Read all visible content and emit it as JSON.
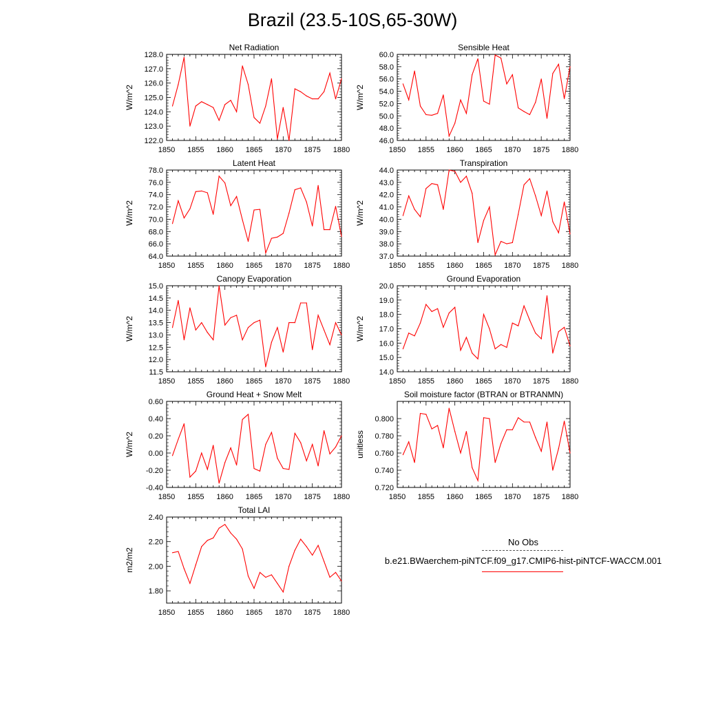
{
  "title": "Brazil (23.5-10S,65-30W)",
  "legend": {
    "obs_label": "No Obs",
    "run_label": "b.e21.BWaerchem-piNTCF.f09_g17.CMIP6-hist-piNTCF-WACCM.001",
    "obs_color": "#555555",
    "run_color": "#ff0000"
  },
  "chart_data": [
    {
      "type": "line",
      "title": "Net Radiation",
      "ylabel": "W/m^2",
      "xlim": [
        1850,
        1880
      ],
      "ylim": [
        122.0,
        128.0
      ],
      "xticks": [
        "1850",
        "1855",
        "1860",
        "1865",
        "1870",
        "1875",
        "1880"
      ],
      "yticks": [
        "122.0",
        "123.0",
        "124.0",
        "125.0",
        "126.0",
        "127.0",
        "128.0"
      ],
      "x": [
        1851,
        1852,
        1853,
        1854,
        1855,
        1856,
        1857,
        1858,
        1859,
        1860,
        1861,
        1862,
        1863,
        1864,
        1865,
        1866,
        1867,
        1868,
        1869,
        1870,
        1871,
        1872,
        1873,
        1874,
        1875,
        1876,
        1877,
        1878,
        1879,
        1880
      ],
      "values": [
        124.4,
        125.9,
        127.8,
        123.0,
        124.4,
        124.7,
        124.5,
        124.3,
        123.4,
        124.5,
        124.8,
        124.0,
        127.2,
        125.9,
        123.6,
        123.2,
        124.4,
        126.3,
        122.1,
        124.3,
        122.0,
        125.6,
        125.4,
        125.1,
        124.9,
        124.9,
        125.4,
        126.7,
        124.9,
        126.3
      ],
      "color": "#ff0000"
    },
    {
      "type": "line",
      "title": "Sensible Heat",
      "ylabel": "W/m^2",
      "xlim": [
        1850,
        1880
      ],
      "ylim": [
        46.0,
        60.0
      ],
      "xticks": [
        "1850",
        "1855",
        "1860",
        "1865",
        "1870",
        "1875",
        "1880"
      ],
      "yticks": [
        "46.0",
        "48.0",
        "50.0",
        "52.0",
        "54.0",
        "56.0",
        "58.0",
        "60.0"
      ],
      "x": [
        1851,
        1852,
        1853,
        1854,
        1855,
        1856,
        1857,
        1858,
        1859,
        1860,
        1861,
        1862,
        1863,
        1864,
        1865,
        1866,
        1867,
        1868,
        1869,
        1870,
        1871,
        1872,
        1873,
        1874,
        1875,
        1876,
        1877,
        1878,
        1879,
        1880
      ],
      "values": [
        55.2,
        52.6,
        57.3,
        51.6,
        50.2,
        50.1,
        50.4,
        53.4,
        46.7,
        48.8,
        52.6,
        50.4,
        56.7,
        59.3,
        52.4,
        51.9,
        59.9,
        59.4,
        55.2,
        56.7,
        51.3,
        50.7,
        50.2,
        52.2,
        56.0,
        49.6,
        56.9,
        58.4,
        52.8,
        58.0
      ],
      "color": "#ff0000"
    },
    {
      "type": "line",
      "title": "Latent Heat",
      "ylabel": "W/m^2",
      "xlim": [
        1850,
        1880
      ],
      "ylim": [
        64.0,
        78.0
      ],
      "xticks": [
        "1850",
        "1855",
        "1860",
        "1865",
        "1870",
        "1875",
        "1880"
      ],
      "yticks": [
        "64.0",
        "66.0",
        "68.0",
        "70.0",
        "72.0",
        "74.0",
        "76.0",
        "78.0"
      ],
      "x": [
        1851,
        1852,
        1853,
        1854,
        1855,
        1856,
        1857,
        1858,
        1859,
        1860,
        1861,
        1862,
        1863,
        1864,
        1865,
        1866,
        1867,
        1868,
        1869,
        1870,
        1871,
        1872,
        1873,
        1874,
        1875,
        1876,
        1877,
        1878,
        1879,
        1880
      ],
      "values": [
        69.3,
        73.0,
        70.2,
        71.7,
        74.5,
        74.6,
        74.3,
        70.8,
        77.0,
        75.9,
        72.2,
        73.7,
        69.9,
        66.4,
        71.5,
        71.6,
        64.5,
        66.9,
        67.1,
        67.7,
        71.0,
        74.8,
        75.1,
        72.8,
        68.9,
        75.5,
        68.3,
        68.3,
        72.1,
        67.2
      ],
      "color": "#ff0000"
    },
    {
      "type": "line",
      "title": "Transpiration",
      "ylabel": "W/m^2",
      "xlim": [
        1850,
        1880
      ],
      "ylim": [
        37.0,
        44.0
      ],
      "xticks": [
        "1850",
        "1855",
        "1860",
        "1865",
        "1870",
        "1875",
        "1880"
      ],
      "yticks": [
        "37.0",
        "38.0",
        "39.0",
        "40.0",
        "41.0",
        "42.0",
        "43.0",
        "44.0"
      ],
      "x": [
        1851,
        1852,
        1853,
        1854,
        1855,
        1856,
        1857,
        1858,
        1859,
        1860,
        1861,
        1862,
        1863,
        1864,
        1865,
        1866,
        1867,
        1868,
        1869,
        1870,
        1871,
        1872,
        1873,
        1874,
        1875,
        1876,
        1877,
        1878,
        1879,
        1880
      ],
      "values": [
        40.3,
        41.9,
        40.8,
        40.2,
        42.5,
        42.9,
        42.8,
        40.8,
        44.0,
        43.9,
        43.0,
        43.5,
        42.1,
        38.1,
        39.9,
        41.0,
        37.1,
        38.2,
        38.0,
        38.1,
        40.4,
        42.8,
        43.3,
        41.9,
        40.3,
        42.3,
        39.8,
        38.9,
        41.4,
        38.8
      ],
      "color": "#ff0000"
    },
    {
      "type": "line",
      "title": "Canopy Evaporation",
      "ylabel": "W/m^2",
      "xlim": [
        1850,
        1880
      ],
      "ylim": [
        11.5,
        15.0
      ],
      "xticks": [
        "1850",
        "1855",
        "1860",
        "1865",
        "1870",
        "1875",
        "1880"
      ],
      "yticks": [
        "11.5",
        "12.0",
        "12.5",
        "13.0",
        "13.5",
        "14.0",
        "14.5",
        "15.0"
      ],
      "x": [
        1851,
        1852,
        1853,
        1854,
        1855,
        1856,
        1857,
        1858,
        1859,
        1860,
        1861,
        1862,
        1863,
        1864,
        1865,
        1866,
        1867,
        1868,
        1869,
        1870,
        1871,
        1872,
        1873,
        1874,
        1875,
        1876,
        1877,
        1878,
        1879,
        1880
      ],
      "values": [
        13.3,
        14.4,
        12.8,
        14.1,
        13.2,
        13.5,
        13.1,
        12.8,
        15.0,
        13.4,
        13.7,
        13.8,
        12.8,
        13.3,
        13.5,
        13.6,
        11.7,
        12.7,
        13.3,
        12.3,
        13.5,
        13.5,
        14.3,
        14.3,
        12.4,
        13.8,
        13.2,
        12.6,
        13.5,
        13.0
      ],
      "color": "#ff0000"
    },
    {
      "type": "line",
      "title": "Ground Evaporation",
      "ylabel": "W/m^2",
      "xlim": [
        1850,
        1880
      ],
      "ylim": [
        14.0,
        20.0
      ],
      "xticks": [
        "1850",
        "1855",
        "1860",
        "1865",
        "1870",
        "1875",
        "1880"
      ],
      "yticks": [
        "14.0",
        "15.0",
        "16.0",
        "17.0",
        "18.0",
        "19.0",
        "20.0"
      ],
      "x": [
        1851,
        1852,
        1853,
        1854,
        1855,
        1856,
        1857,
        1858,
        1859,
        1860,
        1861,
        1862,
        1863,
        1864,
        1865,
        1866,
        1867,
        1868,
        1869,
        1870,
        1871,
        1872,
        1873,
        1874,
        1875,
        1876,
        1877,
        1878,
        1879,
        1880
      ],
      "values": [
        15.6,
        16.7,
        16.5,
        17.4,
        18.7,
        18.2,
        18.4,
        17.1,
        18.1,
        18.5,
        15.5,
        16.4,
        15.3,
        14.9,
        18.0,
        17.0,
        15.6,
        15.9,
        15.7,
        17.4,
        17.2,
        18.6,
        17.6,
        16.7,
        16.3,
        19.3,
        15.3,
        16.8,
        17.1,
        15.8
      ],
      "color": "#ff0000"
    },
    {
      "type": "line",
      "title": "Ground Heat + Snow Melt",
      "ylabel": "W/m^2",
      "xlim": [
        1850,
        1880
      ],
      "ylim": [
        -0.4,
        0.6
      ],
      "xticks": [
        "1850",
        "1855",
        "1860",
        "1865",
        "1870",
        "1875",
        "1880"
      ],
      "yticks": [
        "-0.40",
        "-0.20",
        "0.00",
        "0.20",
        "0.40",
        "0.60"
      ],
      "x": [
        1851,
        1852,
        1853,
        1854,
        1855,
        1856,
        1857,
        1858,
        1859,
        1860,
        1861,
        1862,
        1863,
        1864,
        1865,
        1866,
        1867,
        1868,
        1869,
        1870,
        1871,
        1872,
        1873,
        1874,
        1875,
        1876,
        1877,
        1878,
        1879,
        1880
      ],
      "values": [
        -0.03,
        0.16,
        0.34,
        -0.28,
        -0.21,
        0.0,
        -0.19,
        0.09,
        -0.35,
        -0.11,
        0.06,
        -0.14,
        0.39,
        0.45,
        -0.18,
        -0.21,
        0.1,
        0.24,
        -0.06,
        -0.18,
        -0.19,
        0.23,
        0.12,
        -0.09,
        0.1,
        -0.15,
        0.26,
        -0.01,
        0.07,
        0.2
      ],
      "color": "#ff0000"
    },
    {
      "type": "line",
      "title": "Soil moisture factor (BTRAN or BTRANMN)",
      "ylabel": "unitless",
      "xlim": [
        1850,
        1880
      ],
      "ylim": [
        0.72,
        0.82
      ],
      "xticks": [
        "1850",
        "1855",
        "1860",
        "1865",
        "1870",
        "1875",
        "1880"
      ],
      "yticks": [
        "0.720",
        "0.740",
        "0.760",
        "0.780",
        "0.800"
      ],
      "x": [
        1851,
        1852,
        1853,
        1854,
        1855,
        1856,
        1857,
        1858,
        1859,
        1860,
        1861,
        1862,
        1863,
        1864,
        1865,
        1866,
        1867,
        1868,
        1869,
        1870,
        1871,
        1872,
        1873,
        1874,
        1875,
        1876,
        1877,
        1878,
        1879,
        1880
      ],
      "values": [
        0.758,
        0.773,
        0.749,
        0.806,
        0.805,
        0.788,
        0.792,
        0.766,
        0.812,
        0.785,
        0.76,
        0.785,
        0.743,
        0.728,
        0.801,
        0.8,
        0.749,
        0.771,
        0.787,
        0.787,
        0.801,
        0.796,
        0.796,
        0.778,
        0.762,
        0.796,
        0.74,
        0.765,
        0.797,
        0.76
      ],
      "color": "#ff0000"
    },
    {
      "type": "line",
      "title": "Total LAI",
      "ylabel": "m2/m2",
      "xlim": [
        1850,
        1880
      ],
      "ylim": [
        1.7,
        2.4
      ],
      "xticks": [
        "1850",
        "1855",
        "1860",
        "1865",
        "1870",
        "1875",
        "1880"
      ],
      "yticks": [
        "1.80",
        "2.00",
        "2.20",
        "2.40"
      ],
      "x": [
        1851,
        1852,
        1853,
        1854,
        1855,
        1856,
        1857,
        1858,
        1859,
        1860,
        1861,
        1862,
        1863,
        1864,
        1865,
        1866,
        1867,
        1868,
        1869,
        1870,
        1871,
        1872,
        1873,
        1874,
        1875,
        1876,
        1877,
        1878,
        1879,
        1880
      ],
      "values": [
        2.11,
        2.12,
        1.98,
        1.86,
        2.01,
        2.16,
        2.21,
        2.23,
        2.31,
        2.34,
        2.27,
        2.22,
        2.14,
        1.92,
        1.82,
        1.95,
        1.91,
        1.93,
        1.86,
        1.79,
        2.0,
        2.13,
        2.22,
        2.16,
        2.09,
        2.17,
        2.04,
        1.91,
        1.95,
        1.88
      ],
      "color": "#ff0000"
    }
  ]
}
